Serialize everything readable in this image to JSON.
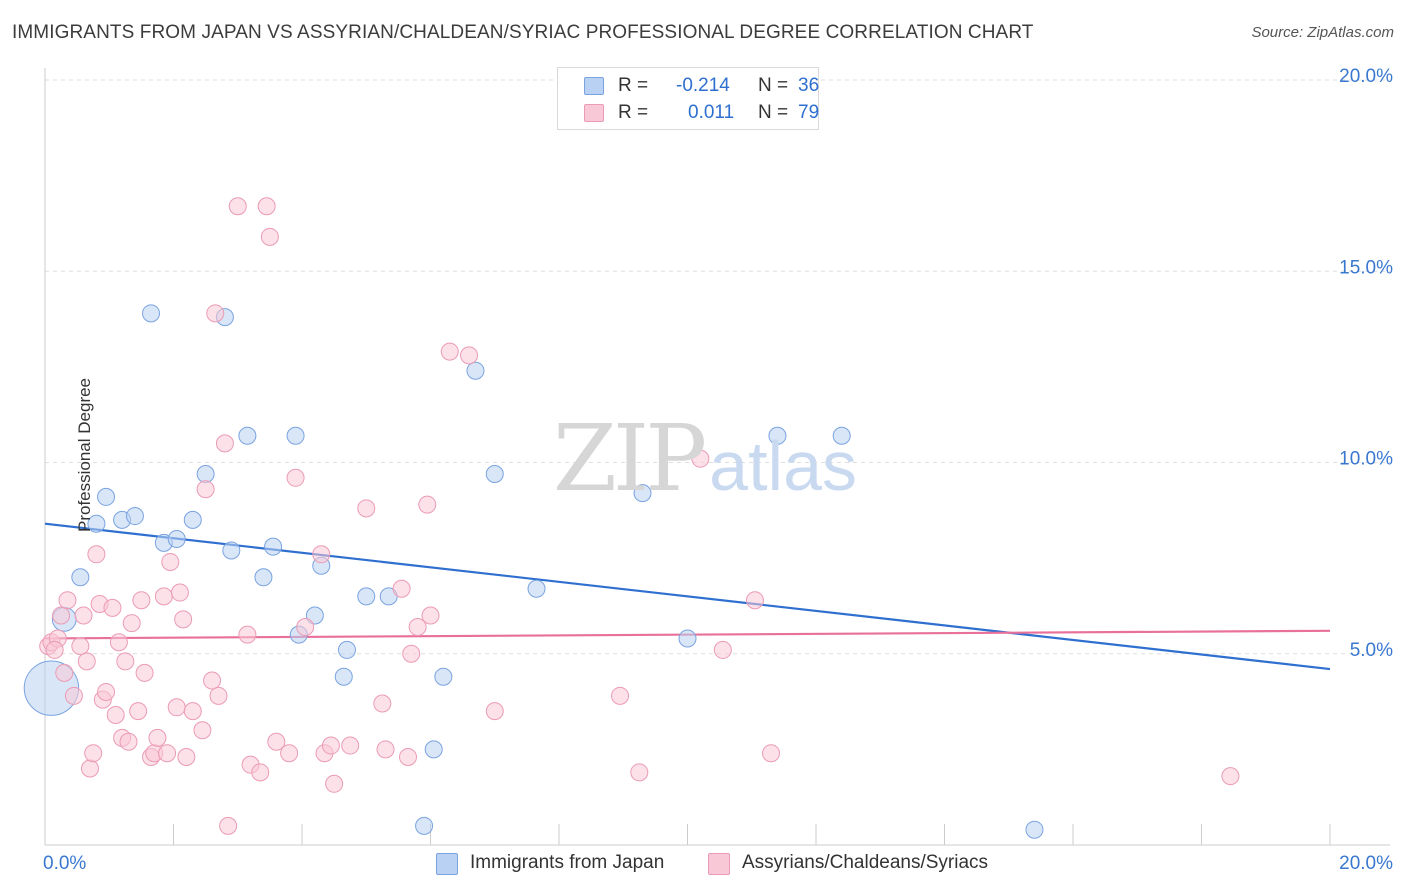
{
  "title": "IMMIGRANTS FROM JAPAN VS ASSYRIAN/CHALDEAN/SYRIAC PROFESSIONAL DEGREE CORRELATION CHART",
  "source": "Source: ZipAtlas.com",
  "watermark": {
    "zip": "ZIP",
    "atlas": "atlas"
  },
  "stats": {
    "r_label": "R =",
    "n_label": "N =",
    "series": [
      {
        "r": "-0.214",
        "n": "36",
        "fill": "#b9d2f3",
        "stroke": "#7aa3e0"
      },
      {
        "r": "0.011",
        "n": "79",
        "fill": "#f9c8d7",
        "stroke": "#eb9bb5"
      }
    ]
  },
  "legend": {
    "items": [
      {
        "label": "Immigrants from Japan",
        "fill": "#b9d2f3",
        "stroke": "#7aa3e0"
      },
      {
        "label": "Assyrians/Chaldeans/Syriacs",
        "fill": "#f9c8d7",
        "stroke": "#eb9bb5"
      }
    ]
  },
  "chart_data": {
    "type": "scatter",
    "ylabel": "Professional Degree",
    "xlim": [
      0,
      20
    ],
    "ylim": [
      0,
      20
    ],
    "y_ticks": [
      5,
      10,
      15,
      20
    ],
    "y_tick_labels": [
      "5.0%",
      "10.0%",
      "15.0%",
      "20.0%"
    ],
    "x_tick_labels": [
      "0.0%",
      "20.0%"
    ],
    "colors": {
      "blue_line": "#2f6fd0",
      "pink_line": "#e8709a",
      "tick_label": "#3a78d0",
      "grid": "#dedede",
      "axis": "#cccccc"
    },
    "series": [
      {
        "name": "Immigrants from Japan",
        "fill": "#b9d2f3",
        "stroke": "#7aa3e0",
        "trend": {
          "x": [
            0,
            20
          ],
          "y": [
            8.4,
            4.6
          ]
        },
        "points": [
          {
            "x": 0.1,
            "y": 4.1,
            "size": 3.2
          },
          {
            "x": 0.3,
            "y": 5.9,
            "size": 1.4
          },
          {
            "x": 0.55,
            "y": 7.0
          },
          {
            "x": 0.8,
            "y": 8.4
          },
          {
            "x": 0.95,
            "y": 9.1
          },
          {
            "x": 1.2,
            "y": 8.5
          },
          {
            "x": 1.4,
            "y": 8.6
          },
          {
            "x": 1.65,
            "y": 13.9
          },
          {
            "x": 1.85,
            "y": 7.9
          },
          {
            "x": 2.05,
            "y": 8.0
          },
          {
            "x": 2.3,
            "y": 8.5
          },
          {
            "x": 2.5,
            "y": 9.7
          },
          {
            "x": 2.8,
            "y": 13.8
          },
          {
            "x": 2.9,
            "y": 7.7
          },
          {
            "x": 3.15,
            "y": 10.7
          },
          {
            "x": 3.4,
            "y": 7.0
          },
          {
            "x": 3.55,
            "y": 7.8
          },
          {
            "x": 3.9,
            "y": 10.7
          },
          {
            "x": 3.95,
            "y": 5.5
          },
          {
            "x": 4.2,
            "y": 6.0
          },
          {
            "x": 4.3,
            "y": 7.3
          },
          {
            "x": 4.65,
            "y": 4.4
          },
          {
            "x": 4.7,
            "y": 5.1
          },
          {
            "x": 5.0,
            "y": 6.5
          },
          {
            "x": 5.35,
            "y": 6.5
          },
          {
            "x": 5.9,
            "y": 0.5
          },
          {
            "x": 6.05,
            "y": 2.5
          },
          {
            "x": 6.2,
            "y": 4.4
          },
          {
            "x": 6.7,
            "y": 12.4
          },
          {
            "x": 7.0,
            "y": 9.7
          },
          {
            "x": 7.65,
            "y": 6.7
          },
          {
            "x": 9.3,
            "y": 9.2
          },
          {
            "x": 10.0,
            "y": 5.4
          },
          {
            "x": 11.4,
            "y": 10.7
          },
          {
            "x": 12.4,
            "y": 10.7
          },
          {
            "x": 15.4,
            "y": 0.4
          }
        ]
      },
      {
        "name": "Assyrians/Chaldeans/Syriacs",
        "fill": "#f9c8d7",
        "stroke": "#eb9bb5",
        "trend": {
          "x": [
            0,
            20
          ],
          "y": [
            5.4,
            5.6
          ]
        },
        "points": [
          {
            "x": 0.05,
            "y": 5.2
          },
          {
            "x": 0.1,
            "y": 5.3
          },
          {
            "x": 0.2,
            "y": 5.4
          },
          {
            "x": 0.25,
            "y": 6.0
          },
          {
            "x": 0.3,
            "y": 4.5
          },
          {
            "x": 0.35,
            "y": 6.4
          },
          {
            "x": 0.45,
            "y": 3.9
          },
          {
            "x": 0.55,
            "y": 5.2
          },
          {
            "x": 0.6,
            "y": 6.0
          },
          {
            "x": 0.65,
            "y": 4.8
          },
          {
            "x": 0.7,
            "y": 2.0
          },
          {
            "x": 0.75,
            "y": 2.4
          },
          {
            "x": 0.8,
            "y": 7.6
          },
          {
            "x": 0.85,
            "y": 6.3
          },
          {
            "x": 0.9,
            "y": 3.8
          },
          {
            "x": 0.95,
            "y": 4.0
          },
          {
            "x": 1.05,
            "y": 6.2
          },
          {
            "x": 1.1,
            "y": 3.4
          },
          {
            "x": 1.15,
            "y": 5.3
          },
          {
            "x": 1.2,
            "y": 2.8
          },
          {
            "x": 1.25,
            "y": 4.8
          },
          {
            "x": 1.3,
            "y": 2.7
          },
          {
            "x": 1.35,
            "y": 5.8
          },
          {
            "x": 1.45,
            "y": 3.5
          },
          {
            "x": 1.5,
            "y": 6.4
          },
          {
            "x": 1.55,
            "y": 4.5
          },
          {
            "x": 1.65,
            "y": 2.3
          },
          {
            "x": 1.7,
            "y": 2.4
          },
          {
            "x": 1.75,
            "y": 2.8
          },
          {
            "x": 1.85,
            "y": 6.5
          },
          {
            "x": 1.9,
            "y": 2.4
          },
          {
            "x": 1.95,
            "y": 7.4
          },
          {
            "x": 2.05,
            "y": 3.6
          },
          {
            "x": 2.1,
            "y": 6.6
          },
          {
            "x": 2.15,
            "y": 5.9
          },
          {
            "x": 2.2,
            "y": 2.3
          },
          {
            "x": 2.3,
            "y": 3.5
          },
          {
            "x": 2.45,
            "y": 3.0
          },
          {
            "x": 2.5,
            "y": 9.3
          },
          {
            "x": 2.6,
            "y": 4.3
          },
          {
            "x": 2.7,
            "y": 3.9
          },
          {
            "x": 2.65,
            "y": 13.9
          },
          {
            "x": 2.8,
            "y": 10.5
          },
          {
            "x": 2.85,
            "y": 0.5
          },
          {
            "x": 3.0,
            "y": 16.7
          },
          {
            "x": 3.15,
            "y": 5.5
          },
          {
            "x": 3.2,
            "y": 2.1
          },
          {
            "x": 3.35,
            "y": 1.9
          },
          {
            "x": 3.45,
            "y": 16.7
          },
          {
            "x": 3.5,
            "y": 15.9
          },
          {
            "x": 3.6,
            "y": 2.7
          },
          {
            "x": 3.8,
            "y": 2.4
          },
          {
            "x": 3.9,
            "y": 9.6
          },
          {
            "x": 4.05,
            "y": 5.7
          },
          {
            "x": 4.3,
            "y": 7.6
          },
          {
            "x": 4.35,
            "y": 2.4
          },
          {
            "x": 4.45,
            "y": 2.6
          },
          {
            "x": 4.5,
            "y": 1.6
          },
          {
            "x": 4.75,
            "y": 2.6
          },
          {
            "x": 5.0,
            "y": 8.8
          },
          {
            "x": 5.25,
            "y": 3.7
          },
          {
            "x": 5.3,
            "y": 2.5
          },
          {
            "x": 5.55,
            "y": 6.7
          },
          {
            "x": 5.65,
            "y": 2.3
          },
          {
            "x": 5.7,
            "y": 5.0
          },
          {
            "x": 5.8,
            "y": 5.7
          },
          {
            "x": 5.95,
            "y": 8.9
          },
          {
            "x": 6.0,
            "y": 6.0
          },
          {
            "x": 6.3,
            "y": 12.9
          },
          {
            "x": 6.6,
            "y": 12.8
          },
          {
            "x": 7.0,
            "y": 3.5
          },
          {
            "x": 8.95,
            "y": 3.9
          },
          {
            "x": 9.25,
            "y": 1.9
          },
          {
            "x": 10.2,
            "y": 10.1
          },
          {
            "x": 10.55,
            "y": 5.1
          },
          {
            "x": 11.05,
            "y": 6.4
          },
          {
            "x": 11.3,
            "y": 2.4
          },
          {
            "x": 18.45,
            "y": 1.8
          },
          {
            "x": 0.15,
            "y": 5.1
          }
        ]
      }
    ]
  }
}
